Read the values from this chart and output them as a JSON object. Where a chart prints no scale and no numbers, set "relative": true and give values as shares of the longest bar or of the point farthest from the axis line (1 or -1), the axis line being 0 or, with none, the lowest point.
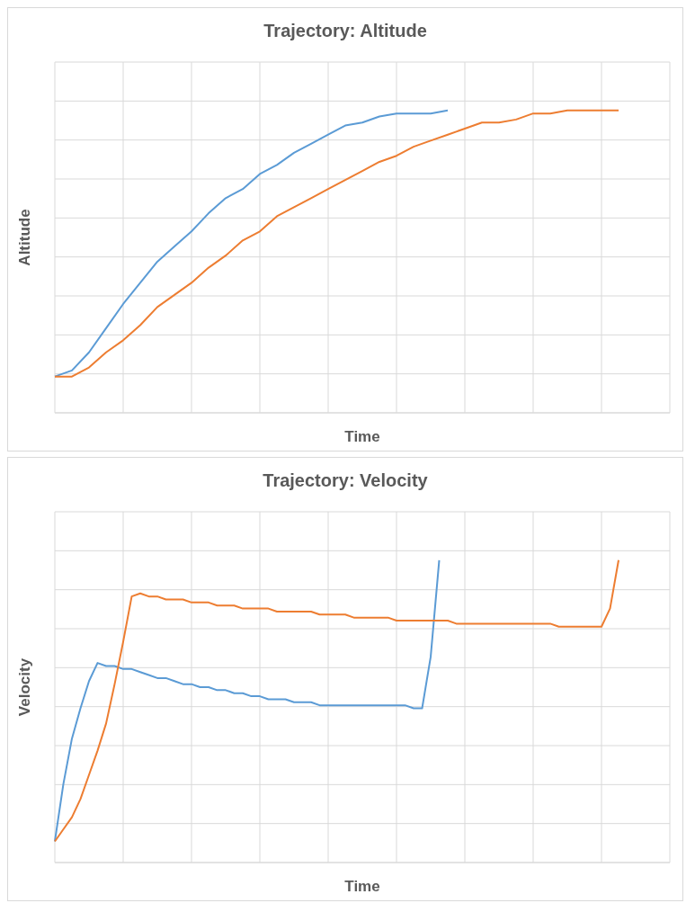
{
  "chart_data": [
    {
      "type": "line",
      "title": "Trajectory: Altitude",
      "xlabel": "Time",
      "ylabel": "Altitude",
      "relative": true,
      "grid": true,
      "categories": [
        null,
        null,
        null,
        null,
        null,
        null,
        null,
        null,
        null,
        null,
        null,
        null,
        null,
        null,
        null,
        null,
        null,
        null,
        null,
        null,
        null,
        null,
        null,
        null,
        null,
        null,
        null,
        null,
        null,
        null,
        null,
        null,
        null,
        null,
        null,
        null,
        null
      ],
      "series": [
        {
          "color": "#5b9bd5",
          "values": [
            0.12,
            0.14,
            0.2,
            0.28,
            0.36,
            0.43,
            0.5,
            0.55,
            0.6,
            0.66,
            0.71,
            0.74,
            0.79,
            0.82,
            0.86,
            0.89,
            0.92,
            0.95,
            0.96,
            0.98,
            0.99,
            0.99,
            0.99,
            1,
            null,
            null,
            null,
            null,
            null,
            null,
            null,
            null,
            null,
            null,
            null,
            null,
            null
          ]
        },
        {
          "color": "#ed7d31",
          "values": [
            0.12,
            0.12,
            0.15,
            0.2,
            0.24,
            0.29,
            0.35,
            0.39,
            0.43,
            0.48,
            0.52,
            0.57,
            0.6,
            0.65,
            0.68,
            0.71,
            0.74,
            0.77,
            0.8,
            0.83,
            0.85,
            0.88,
            0.9,
            0.92,
            0.94,
            0.96,
            0.96,
            0.97,
            0.99,
            0.99,
            1,
            1,
            1,
            1,
            null,
            null,
            null
          ]
        }
      ]
    },
    {
      "type": "line",
      "title": "Trajectory: Velocity",
      "xlabel": "Time",
      "ylabel": "Velocity",
      "relative": true,
      "grid": true,
      "categories": [
        null,
        null,
        null,
        null,
        null,
        null,
        null,
        null,
        null,
        null,
        null,
        null,
        null,
        null,
        null,
        null,
        null,
        null,
        null,
        null,
        null,
        null,
        null,
        null,
        null,
        null,
        null,
        null,
        null,
        null,
        null,
        null,
        null,
        null,
        null,
        null,
        null,
        null,
        null,
        null,
        null,
        null,
        null,
        null,
        null,
        null,
        null,
        null,
        null,
        null,
        null,
        null,
        null,
        null,
        null,
        null,
        null,
        null,
        null,
        null,
        null,
        null,
        null,
        null,
        null,
        null,
        null,
        null,
        null,
        null,
        null,
        null,
        null
      ],
      "series": [
        {
          "color": "#5b9bd5",
          "values": [
            0.07,
            0.26,
            0.41,
            0.51,
            0.6,
            0.66,
            0.65,
            0.65,
            0.64,
            0.64,
            0.63,
            0.62,
            0.61,
            0.61,
            0.6,
            0.59,
            0.59,
            0.58,
            0.58,
            0.57,
            0.57,
            0.56,
            0.56,
            0.55,
            0.55,
            0.54,
            0.54,
            0.54,
            0.53,
            0.53,
            0.53,
            0.52,
            0.52,
            0.52,
            0.52,
            0.52,
            0.52,
            0.52,
            0.52,
            0.52,
            0.52,
            0.52,
            0.51,
            0.51,
            0.68,
            1,
            null,
            null,
            null,
            null,
            null,
            null,
            null,
            null,
            null,
            null,
            null,
            null,
            null,
            null,
            null,
            null,
            null,
            null,
            null,
            null,
            null,
            null,
            null,
            null,
            null,
            null,
            null
          ]
        },
        {
          "color": "#ed7d31",
          "values": [
            0.07,
            0.11,
            0.15,
            0.21,
            0.29,
            0.37,
            0.46,
            0.59,
            0.73,
            0.88,
            0.89,
            0.88,
            0.88,
            0.87,
            0.87,
            0.87,
            0.86,
            0.86,
            0.86,
            0.85,
            0.85,
            0.85,
            0.84,
            0.84,
            0.84,
            0.84,
            0.83,
            0.83,
            0.83,
            0.83,
            0.83,
            0.82,
            0.82,
            0.82,
            0.82,
            0.81,
            0.81,
            0.81,
            0.81,
            0.81,
            0.8,
            0.8,
            0.8,
            0.8,
            0.8,
            0.8,
            0.8,
            0.79,
            0.79,
            0.79,
            0.79,
            0.79,
            0.79,
            0.79,
            0.79,
            0.79,
            0.79,
            0.79,
            0.79,
            0.78,
            0.78,
            0.78,
            0.78,
            0.78,
            0.78,
            0.84,
            1,
            null,
            null,
            null,
            null,
            null,
            null
          ]
        }
      ]
    }
  ]
}
